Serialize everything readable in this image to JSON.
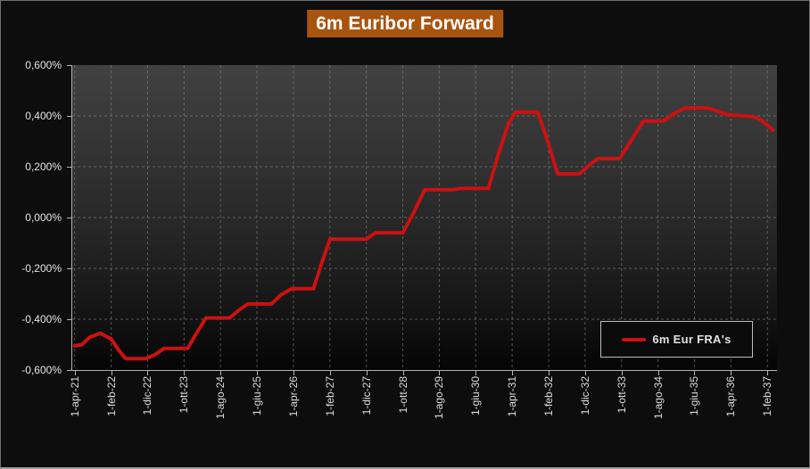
{
  "title": "6m Euribor Forward",
  "colors": {
    "title_bg": "#a8540f",
    "title_text": "#ffffff",
    "series_red": "#cc1111",
    "page_bg": "#0d0d0d",
    "grid": "#909090",
    "axis": "#b3b3b3",
    "tick_label": "#e0e0e0"
  },
  "y_axis": {
    "tick_labels": [
      "0,600%",
      "0,400%",
      "0,200%",
      "0,000%",
      "-0,200%",
      "-0,400%",
      "-0,600%"
    ],
    "max": 0.6,
    "min": -0.6,
    "step": 0.2
  },
  "x_axis": {
    "tick_labels": [
      "1-apr-21",
      "1-feb-22",
      "1-dic-22",
      "1-ott-23",
      "1-ago-24",
      "1-giu-25",
      "1-apr-26",
      "1-feb-27",
      "1-dic-27",
      "1-ott-28",
      "1-ago-29",
      "1-giu-30",
      "1-apr-31",
      "1-feb-32",
      "1-dic-32",
      "1-ott-33",
      "1-ago-34",
      "1-giu-35",
      "1-apr-36",
      "1-feb-37"
    ]
  },
  "legend": {
    "label": "6m Eur FRA's"
  },
  "chart_data": {
    "type": "line",
    "title": "6m Euribor Forward",
    "y_unit": "%",
    "ylim": [
      -0.6,
      0.6
    ],
    "y_tick_step": 0.2,
    "grid": true,
    "legend_position": "bottom-right",
    "x_unit": "months_since_2021-04-01",
    "x_tick_labels": [
      "1-apr-21",
      "1-feb-22",
      "1-dic-22",
      "1-ott-23",
      "1-ago-24",
      "1-giu-25",
      "1-apr-26",
      "1-feb-27",
      "1-dic-27",
      "1-ott-28",
      "1-ago-29",
      "1-giu-30",
      "1-apr-31",
      "1-feb-32",
      "1-dic-32",
      "1-ott-33",
      "1-ago-34",
      "1-giu-35",
      "1-apr-36",
      "1-feb-37"
    ],
    "x_tick_month_offsets": [
      0,
      10,
      20,
      30,
      40,
      50,
      60,
      70,
      80,
      90,
      100,
      110,
      120,
      130,
      140,
      150,
      160,
      170,
      180,
      190
    ],
    "series": [
      {
        "name": "6m Eur FRA's",
        "color": "#cc1111",
        "points": [
          [
            0,
            -0.505
          ],
          [
            2,
            -0.5
          ],
          [
            4,
            -0.472
          ],
          [
            7,
            -0.455
          ],
          [
            10,
            -0.478
          ],
          [
            12,
            -0.52
          ],
          [
            14,
            -0.555
          ],
          [
            19.5,
            -0.555
          ],
          [
            22,
            -0.54
          ],
          [
            24.5,
            -0.515
          ],
          [
            31,
            -0.515
          ],
          [
            33,
            -0.465
          ],
          [
            36,
            -0.395
          ],
          [
            42.5,
            -0.395
          ],
          [
            45,
            -0.365
          ],
          [
            47.5,
            -0.34
          ],
          [
            54,
            -0.34
          ],
          [
            56.5,
            -0.305
          ],
          [
            59.5,
            -0.28
          ],
          [
            65.5,
            -0.28
          ],
          [
            67.5,
            -0.19
          ],
          [
            70,
            -0.085
          ],
          [
            80,
            -0.085
          ],
          [
            82.5,
            -0.06
          ],
          [
            90,
            -0.06
          ],
          [
            93,
            0.02
          ],
          [
            96,
            0.11
          ],
          [
            104,
            0.11
          ],
          [
            106,
            0.115
          ],
          [
            113.5,
            0.115
          ],
          [
            116,
            0.24
          ],
          [
            119,
            0.37
          ],
          [
            121,
            0.415
          ],
          [
            127,
            0.415
          ],
          [
            129.5,
            0.31
          ],
          [
            132.5,
            0.172
          ],
          [
            138.5,
            0.172
          ],
          [
            141,
            0.205
          ],
          [
            143.5,
            0.232
          ],
          [
            149.5,
            0.232
          ],
          [
            152.5,
            0.3
          ],
          [
            156,
            0.38
          ],
          [
            161.5,
            0.38
          ],
          [
            164.5,
            0.41
          ],
          [
            167.5,
            0.432
          ],
          [
            173.5,
            0.432
          ],
          [
            176.5,
            0.418
          ],
          [
            179,
            0.405
          ],
          [
            186,
            0.398
          ],
          [
            188.5,
            0.382
          ],
          [
            191.5,
            0.345
          ]
        ]
      }
    ]
  }
}
